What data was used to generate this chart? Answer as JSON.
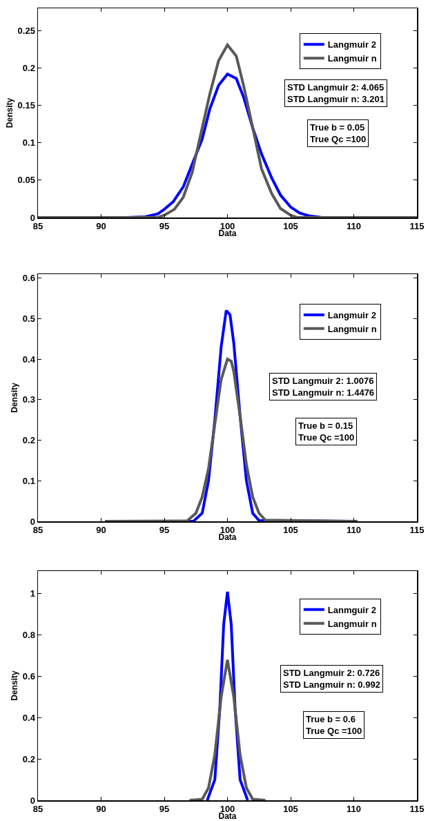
{
  "chart_data": [
    {
      "type": "line",
      "xlabel": "Data",
      "ylabel": "Density",
      "xlim": [
        85,
        115
      ],
      "xticks": [
        85,
        90,
        95,
        100,
        105,
        110,
        115
      ],
      "ylim": [
        0,
        0.28
      ],
      "yticks": [
        0,
        0.05,
        0.1,
        0.15,
        0.2,
        0.25
      ],
      "grid": false,
      "legend": "top right",
      "line_style": "solid",
      "marker": "none",
      "series": [
        {
          "name": "Langmuir 2",
          "color": "#0000ff",
          "x": [
            85,
            92,
            93.5,
            94.5,
            95,
            95.7,
            96.5,
            97.2,
            98,
            98.6,
            99.3,
            100,
            100.7,
            101.3,
            102,
            102.7,
            103.5,
            104.2,
            105,
            105.7,
            106.5,
            107.5,
            115
          ],
          "values": [
            0,
            0,
            0.001,
            0.005,
            0.011,
            0.021,
            0.041,
            0.071,
            0.105,
            0.145,
            0.177,
            0.192,
            0.186,
            0.16,
            0.12,
            0.085,
            0.053,
            0.03,
            0.014,
            0.006,
            0.002,
            0,
            0
          ]
        },
        {
          "name": "Langmuir n",
          "color": "#595959",
          "x": [
            85,
            94.5,
            95,
            95.8,
            96.5,
            97.2,
            98,
            98.6,
            99.3,
            100,
            100.7,
            101.3,
            102,
            102.7,
            103.5,
            104.2,
            105,
            105.5,
            115
          ],
          "values": [
            0,
            0,
            0.003,
            0.011,
            0.027,
            0.06,
            0.12,
            0.165,
            0.21,
            0.231,
            0.216,
            0.175,
            0.12,
            0.065,
            0.032,
            0.012,
            0.003,
            0,
            0
          ]
        }
      ],
      "annotations": [
        "STD Langmuir 2: 4.065\nSTD Langmuir n: 3.201",
        "True b = 0.05\nTrue Qc =100"
      ]
    },
    {
      "type": "line",
      "xlabel": "Data",
      "ylabel": "Density",
      "xlim": [
        85,
        115
      ],
      "xticks": [
        85,
        90,
        95,
        100,
        105,
        110,
        115
      ],
      "ylim": [
        0,
        0.61
      ],
      "yticks": [
        0,
        0.1,
        0.2,
        0.3,
        0.4,
        0.5,
        0.6
      ],
      "grid": false,
      "legend": "top right",
      "line_style": "solid",
      "marker": "none",
      "series": [
        {
          "name": "Langmuir 2",
          "color": "#0000ff",
          "x": [
            90.3,
            97.3,
            98,
            98.5,
            99,
            99.5,
            99.9,
            100.2,
            100.5,
            101,
            101.5,
            102,
            102.5,
            110.3
          ],
          "values": [
            0,
            0,
            0.02,
            0.1,
            0.25,
            0.43,
            0.52,
            0.51,
            0.44,
            0.26,
            0.1,
            0.02,
            0.002,
            0
          ]
        },
        {
          "name": "Langmuir n",
          "color": "#595959",
          "x": [
            90.3,
            96.8,
            97.5,
            98,
            98.5,
            99,
            99.5,
            100,
            100.3,
            100.5,
            101,
            101.5,
            102,
            102.5,
            103,
            110.3
          ],
          "values": [
            0,
            0.001,
            0.02,
            0.06,
            0.13,
            0.24,
            0.35,
            0.4,
            0.395,
            0.37,
            0.26,
            0.14,
            0.06,
            0.02,
            0.003,
            0
          ]
        }
      ],
      "annotations": [
        "STD Langmuir 2: 1.0076\nSTD Langmuir n: 1.4476",
        "True b = 0.15\nTrue Qc =100"
      ]
    },
    {
      "type": "line",
      "xlabel": "Data",
      "ylabel": "Density",
      "xlim": [
        85,
        115
      ],
      "xticks": [
        85,
        90,
        95,
        100,
        105,
        110,
        115
      ],
      "ylim": [
        0,
        1.11
      ],
      "yticks": [
        0,
        0.2,
        0.4,
        0.6,
        0.8,
        1
      ],
      "grid": false,
      "legend": "top right",
      "line_style": "solid",
      "marker": "none",
      "series": [
        {
          "name": "Lanmguir 2",
          "color": "#0000ff",
          "x": [
            98.4,
            99,
            99.4,
            99.7,
            100,
            100.3,
            100.6,
            101,
            101.6
          ],
          "values": [
            0,
            0.1,
            0.45,
            0.85,
            1.01,
            0.85,
            0.45,
            0.1,
            0
          ]
        },
        {
          "name": "Langmuir n",
          "color": "#595959",
          "x": [
            97,
            98,
            98.5,
            99,
            99.5,
            100,
            100.5,
            101,
            101.5,
            102,
            103
          ],
          "values": [
            0,
            0.005,
            0.06,
            0.22,
            0.5,
            0.68,
            0.5,
            0.22,
            0.06,
            0.005,
            0
          ]
        }
      ],
      "annotations": [
        "STD Langmuir 2: 0.726\nSTD Langmuir n: 0.992",
        "True b = 0.6\nTrue Qc =100"
      ]
    }
  ]
}
